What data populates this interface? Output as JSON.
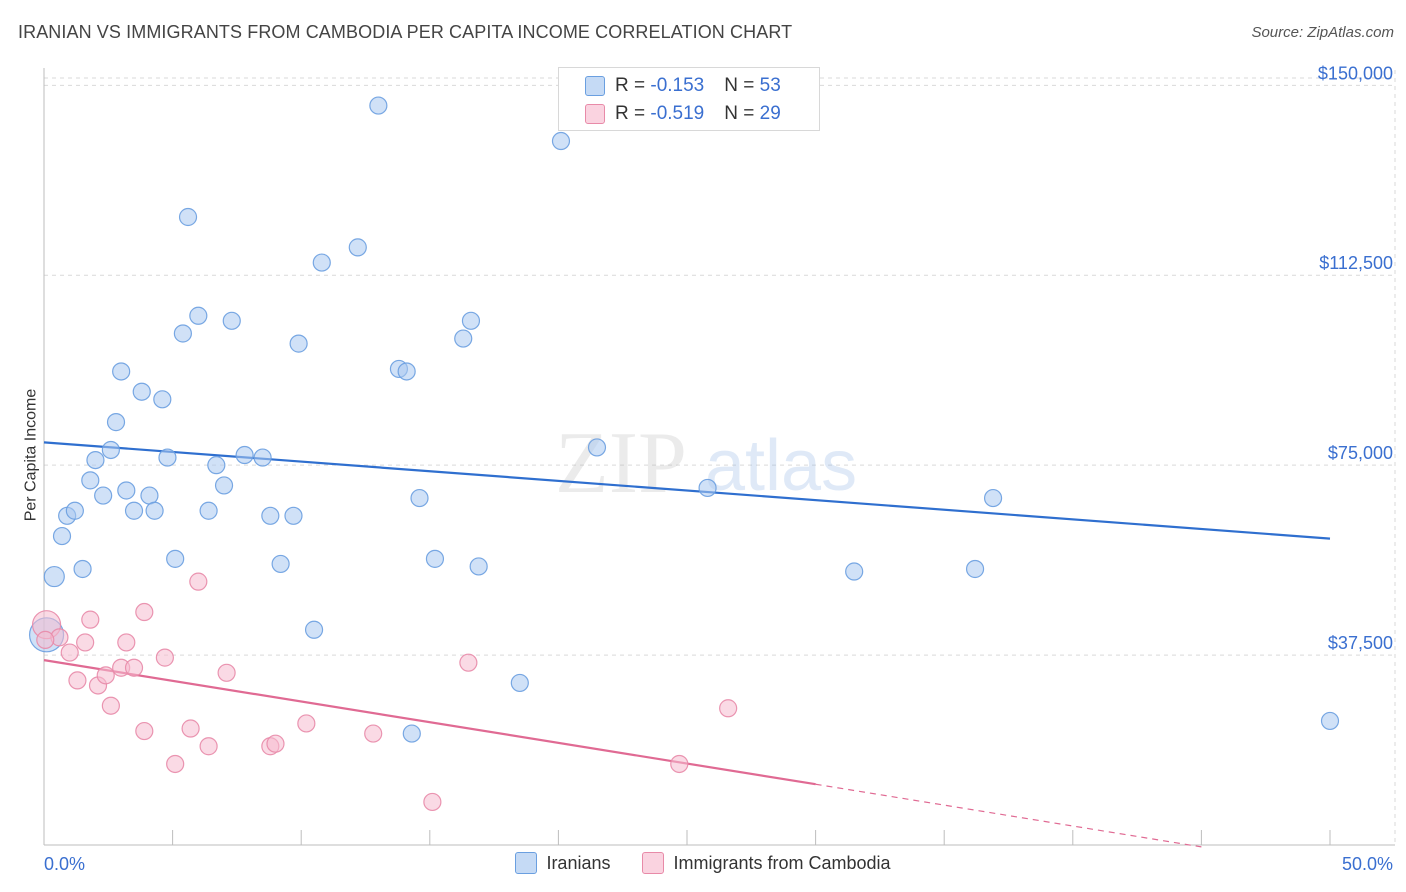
{
  "header": {
    "title": "IRANIAN VS IMMIGRANTS FROM CAMBODIA PER CAPITA INCOME CORRELATION CHART",
    "source": "Source: ZipAtlas.com"
  },
  "watermark": {
    "zip": "ZIP",
    "atlas": "atlas"
  },
  "legend": {
    "rows": [
      {
        "r_label": "R = ",
        "r_value": "-0.153",
        "n_label": "N = ",
        "n_value": "53",
        "color": "#a9c8f0"
      },
      {
        "r_label": "R = ",
        "r_value": "-0.519",
        "n_label": "N = ",
        "n_value": "29",
        "color": "#f6bcd0"
      }
    ]
  },
  "bottom_legend": {
    "iranians": "Iranians",
    "cambodia": "Immigrants from Cambodia"
  },
  "chart_data": {
    "type": "scatter",
    "ylabel": "Per Capita Income",
    "xlim": [
      0,
      50
    ],
    "ylim": [
      0,
      155000
    ],
    "x_tick_labels": [
      "0.0%",
      "50.0%"
    ],
    "y_ticks": [
      37500,
      75000,
      112500,
      150000
    ],
    "y_tick_labels": [
      "$37,500",
      "$75,000",
      "$112,500",
      "$150,000"
    ],
    "grid": true,
    "legend_position": "top-center",
    "series": [
      {
        "name": "Iranians",
        "color": "#6a9fe0",
        "fill": "#a9c8f0",
        "trend": {
          "x": [
            0,
            50
          ],
          "y": [
            79500,
            60500
          ],
          "color": "#2f6fcf"
        },
        "points": [
          [
            0.1,
            41500
          ],
          [
            0.4,
            53000
          ],
          [
            0.7,
            61000
          ],
          [
            0.9,
            65000
          ],
          [
            1.2,
            66000
          ],
          [
            1.5,
            54500
          ],
          [
            1.8,
            72000
          ],
          [
            2.0,
            76000
          ],
          [
            2.3,
            69000
          ],
          [
            2.6,
            78000
          ],
          [
            2.8,
            83500
          ],
          [
            3.0,
            93500
          ],
          [
            3.2,
            70000
          ],
          [
            3.5,
            66000
          ],
          [
            3.8,
            89500
          ],
          [
            4.1,
            69000
          ],
          [
            4.3,
            66000
          ],
          [
            4.6,
            88000
          ],
          [
            4.8,
            76500
          ],
          [
            5.1,
            56500
          ],
          [
            5.6,
            124000
          ],
          [
            5.4,
            101000
          ],
          [
            6.0,
            104500
          ],
          [
            6.4,
            66000
          ],
          [
            6.7,
            75000
          ],
          [
            7.0,
            71000
          ],
          [
            7.3,
            103500
          ],
          [
            7.8,
            77000
          ],
          [
            8.5,
            76500
          ],
          [
            8.8,
            65000
          ],
          [
            9.2,
            55500
          ],
          [
            9.9,
            99000
          ],
          [
            9.7,
            65000
          ],
          [
            10.5,
            42500
          ],
          [
            10.8,
            115000
          ],
          [
            12.2,
            118000
          ],
          [
            13.0,
            146000
          ],
          [
            13.8,
            94000
          ],
          [
            14.1,
            93500
          ],
          [
            14.3,
            22000
          ],
          [
            14.6,
            68500
          ],
          [
            15.2,
            56500
          ],
          [
            16.3,
            100000
          ],
          [
            16.6,
            103500
          ],
          [
            16.9,
            55000
          ],
          [
            18.5,
            32000
          ],
          [
            20.1,
            139000
          ],
          [
            21.5,
            78500
          ],
          [
            25.8,
            70500
          ],
          [
            31.5,
            54000
          ],
          [
            36.2,
            54500
          ],
          [
            36.9,
            68500
          ],
          [
            50.0,
            24500
          ]
        ],
        "sizes": {
          "0": 14,
          "1": 10
        }
      },
      {
        "name": "Immigrants from Cambodia",
        "color": "#e88aa8",
        "fill": "#f6bcd0",
        "trend": {
          "x": [
            0,
            30
          ],
          "y": [
            36500,
            12000
          ],
          "color": "#e06a93",
          "dash_x": [
            30,
            50
          ],
          "dash_y": [
            12000,
            -4500
          ]
        },
        "points": [
          [
            0.1,
            43500
          ],
          [
            0.6,
            41000
          ],
          [
            1.0,
            38000
          ],
          [
            1.3,
            32500
          ],
          [
            1.6,
            40000
          ],
          [
            1.8,
            44500
          ],
          [
            2.1,
            31500
          ],
          [
            2.4,
            33500
          ],
          [
            2.6,
            27500
          ],
          [
            3.0,
            35000
          ],
          [
            3.2,
            40000
          ],
          [
            3.5,
            35000
          ],
          [
            3.9,
            22500
          ],
          [
            3.9,
            46000
          ],
          [
            4.7,
            37000
          ],
          [
            5.1,
            16000
          ],
          [
            5.7,
            23000
          ],
          [
            6.0,
            52000
          ],
          [
            6.4,
            19500
          ],
          [
            7.1,
            34000
          ],
          [
            8.8,
            19500
          ],
          [
            9.0,
            20000
          ],
          [
            10.2,
            24000
          ],
          [
            12.8,
            22000
          ],
          [
            15.1,
            8500
          ],
          [
            16.5,
            36000
          ],
          [
            24.7,
            16000
          ],
          [
            26.6,
            27000
          ],
          [
            0.05,
            40500
          ]
        ]
      }
    ]
  }
}
